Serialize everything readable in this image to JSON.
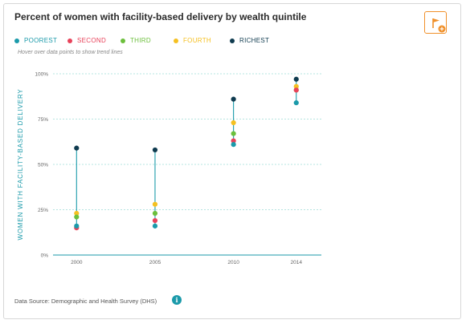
{
  "header": {
    "title": "Percent of women with facility-based delivery by wealth quintile",
    "hint": "Hover over data points to show trend lines"
  },
  "footer": {
    "source": "Data Source: Demographic and Health Survey (DHS)",
    "info_glyph": "i"
  },
  "icons": {
    "flag_button": "flag-add-icon",
    "info": "info-icon"
  },
  "colors": {
    "POOREST": "#1b9aaa",
    "SECOND": "#e8425a",
    "THIRD": "#6cbf3c",
    "FOURTH": "#f5c021",
    "RICHEST": "#0f3b4f",
    "accent": "#f0902a",
    "range_line": "#1b9aaa"
  },
  "chart_data": {
    "type": "scatter",
    "x": [
      2000,
      2005,
      2010,
      2014
    ],
    "x_tick_labels": [
      "2000",
      "2005",
      "2010",
      "2014"
    ],
    "ylabel": "WOMEN WITH FACILITY-BASED DELIVERY",
    "ylim": [
      0,
      100
    ],
    "y_ticks": [
      0,
      25,
      50,
      75,
      100
    ],
    "y_tick_labels": [
      "0%",
      "25%",
      "50%",
      "75%",
      "100%"
    ],
    "grid": true,
    "legend_position": "top-left",
    "series": [
      {
        "name": "POOREST",
        "values": [
          16,
          16,
          61,
          84
        ]
      },
      {
        "name": "SECOND",
        "values": [
          15,
          19,
          63,
          91
        ]
      },
      {
        "name": "THIRD",
        "values": [
          21,
          23,
          67,
          91
        ]
      },
      {
        "name": "FOURTH",
        "values": [
          23,
          28,
          73,
          93
        ]
      },
      {
        "name": "RICHEST",
        "values": [
          59,
          58,
          86,
          97
        ]
      }
    ]
  }
}
